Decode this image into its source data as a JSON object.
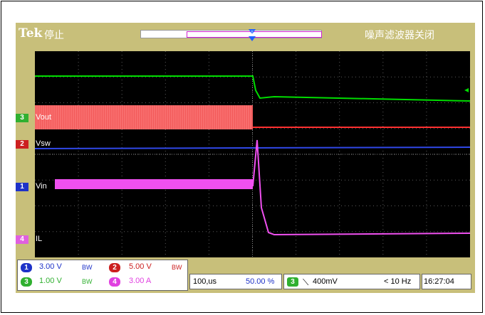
{
  "header": {
    "brand": "Tek",
    "run_state": "停止",
    "noise_filter": "噪声滤波器关闭"
  },
  "channels": [
    {
      "id": "3",
      "name": "Vout",
      "color": "#00cc00"
    },
    {
      "id": "2",
      "name": "Vsw",
      "color": "#dd2222"
    },
    {
      "id": "1",
      "name": "Vin",
      "color": "#2a3cd8"
    },
    {
      "id": "4",
      "name": "IL",
      "color": "#e040e0"
    }
  ],
  "scales": [
    {
      "id": "1",
      "value": "3.00 V",
      "bw": "BW",
      "color": "#1e32c8",
      "text_color": "#1e32c8"
    },
    {
      "id": "2",
      "value": "5.00 V",
      "bw": "BW",
      "color": "#cc2020",
      "text_color": "#cc2020"
    },
    {
      "id": "3",
      "value": "1.00 V",
      "bw": "BW",
      "color": "#30b030",
      "text_color": "#30b030"
    },
    {
      "id": "4",
      "value": "3.00 A",
      "bw": "",
      "color": "#e040e0",
      "text_color": "#e040e0"
    }
  ],
  "timebase": {
    "value": "100,us",
    "position": "50.00 %"
  },
  "trigger": {
    "channel": "3",
    "level": "400mV",
    "freq": "< 10 Hz"
  },
  "clock": "16:27:04",
  "colors": {
    "bezel": "#c8bf7a",
    "grid": "#5a5a5a",
    "background": "#000000"
  }
}
